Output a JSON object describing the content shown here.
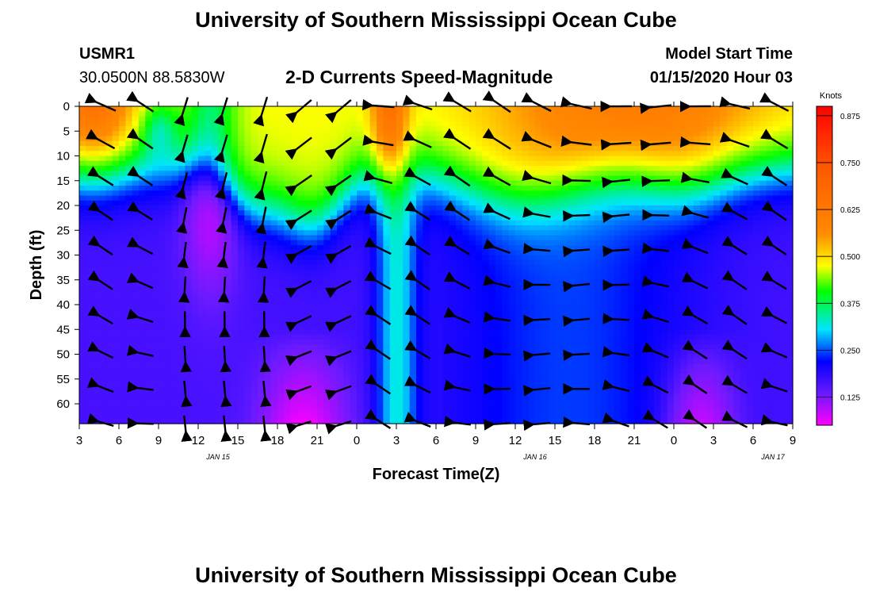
{
  "header": {
    "title_top": "University of Southern Mississippi Ocean Cube",
    "title_bottom": "University of Southern Mississippi Ocean Cube",
    "station": "USMR1",
    "location": "30.0500N 88.5830W",
    "plot_title": "2-D Currents Speed-Magnitude",
    "model_start_label": "Model Start Time",
    "model_start_value": "01/15/2020 Hour 03"
  },
  "chart_data": {
    "type": "heatmap",
    "title": "2-D Currents Speed-Magnitude",
    "xlabel": "Forecast Time(Z)",
    "ylabel": "Depth (ft)",
    "x_range_hours": [
      0,
      54
    ],
    "y_range_ft": [
      0,
      64
    ],
    "x_ticks": [
      "3",
      "6",
      "9",
      "12",
      "15",
      "18",
      "21",
      "0",
      "3",
      "6",
      "9",
      "12",
      "15",
      "18",
      "21",
      "0",
      "3",
      "6",
      "9"
    ],
    "y_ticks": [
      "0",
      "5",
      "10",
      "15",
      "20",
      "25",
      "30",
      "35",
      "40",
      "45",
      "50",
      "55",
      "60"
    ],
    "date_labels": [
      "JAN 15",
      "JAN 16",
      "JAN 17"
    ],
    "colorbar": {
      "unit": "Knots",
      "min": 0.05,
      "max": 0.9,
      "ticks": [
        "0.125",
        "0.250",
        "0.375",
        "0.500",
        "0.625",
        "0.750",
        "0.875"
      ]
    },
    "vectors_note": "current direction arrows",
    "surface_fast_regions": [
      [
        0,
        3
      ],
      [
        22,
        25
      ],
      [
        31,
        54
      ]
    ],
    "bottom_slow_regions": [
      [
        13,
        22
      ],
      [
        41,
        50
      ]
    ]
  }
}
